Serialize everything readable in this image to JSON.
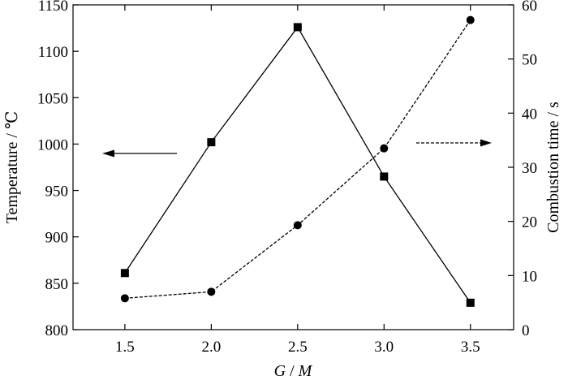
{
  "chart_data": {
    "type": "line",
    "x": [
      1.5,
      2.0,
      2.5,
      3.0,
      3.5
    ],
    "x_tick_labels": [
      "1.5",
      "2.0",
      "2.5",
      "3.0",
      "3.5"
    ],
    "xlim": [
      1.2,
      3.75
    ],
    "xlabel": "G / M",
    "xlabel_parts": [
      "G",
      " / ",
      "M"
    ],
    "ylabel_left": "Temperature / ℃",
    "ylabel_right": "Combustion time / s",
    "ylim_left": [
      800,
      1150
    ],
    "ylim_right": [
      0,
      60
    ],
    "y_left_ticks": [
      "800",
      "850",
      "900",
      "950",
      "1000",
      "1050",
      "1100",
      "1150"
    ],
    "y_right_ticks": [
      "0",
      "10",
      "20",
      "30",
      "40",
      "50",
      "60"
    ],
    "grid": false,
    "series": [
      {
        "axis": "left",
        "marker": "square",
        "line_style": "solid",
        "values": [
          861,
          1002,
          1126,
          965,
          829
        ]
      },
      {
        "axis": "right",
        "marker": "circle",
        "line_style": "dashed",
        "values": [
          5.8,
          7.0,
          19.3,
          33.5,
          57.2
        ]
      }
    ],
    "annotations": [
      {
        "type": "arrow",
        "points_to": "left axis",
        "line_style": "solid"
      },
      {
        "type": "arrow",
        "points_to": "right axis",
        "line_style": "dashed"
      }
    ],
    "colors": {
      "ink": "#000000",
      "background": "#ffffff"
    }
  }
}
